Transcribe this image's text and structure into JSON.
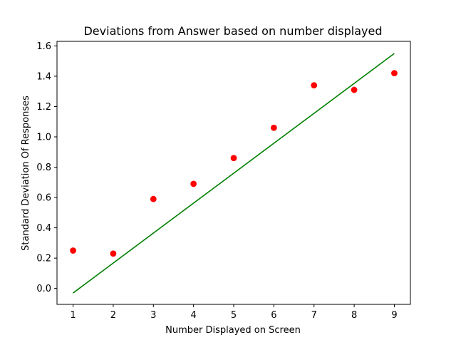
{
  "chart_data": {
    "type": "scatter",
    "title": "Deviations from Answer based on number displayed",
    "xlabel": "Number Displayed on Screen",
    "ylabel": "Standard Deviation Of Responses",
    "xlim": [
      0.6,
      9.4
    ],
    "ylim": [
      -0.105,
      1.63
    ],
    "xticks": [
      1,
      2,
      3,
      4,
      5,
      6,
      7,
      8,
      9
    ],
    "yticks": [
      0.0,
      0.2,
      0.4,
      0.6,
      0.8,
      1.0,
      1.2,
      1.4,
      1.6
    ],
    "grid": false,
    "series": [
      {
        "kind": "scatter",
        "color": "#ff0000",
        "x": [
          1,
          2,
          3,
          4,
          5,
          6,
          7,
          8,
          9
        ],
        "y": [
          0.25,
          0.23,
          0.59,
          0.69,
          0.86,
          1.06,
          1.34,
          1.31,
          1.42
        ]
      },
      {
        "kind": "line",
        "color": "#008000",
        "x": [
          1,
          9
        ],
        "y": [
          -0.03,
          1.55
        ]
      }
    ]
  }
}
